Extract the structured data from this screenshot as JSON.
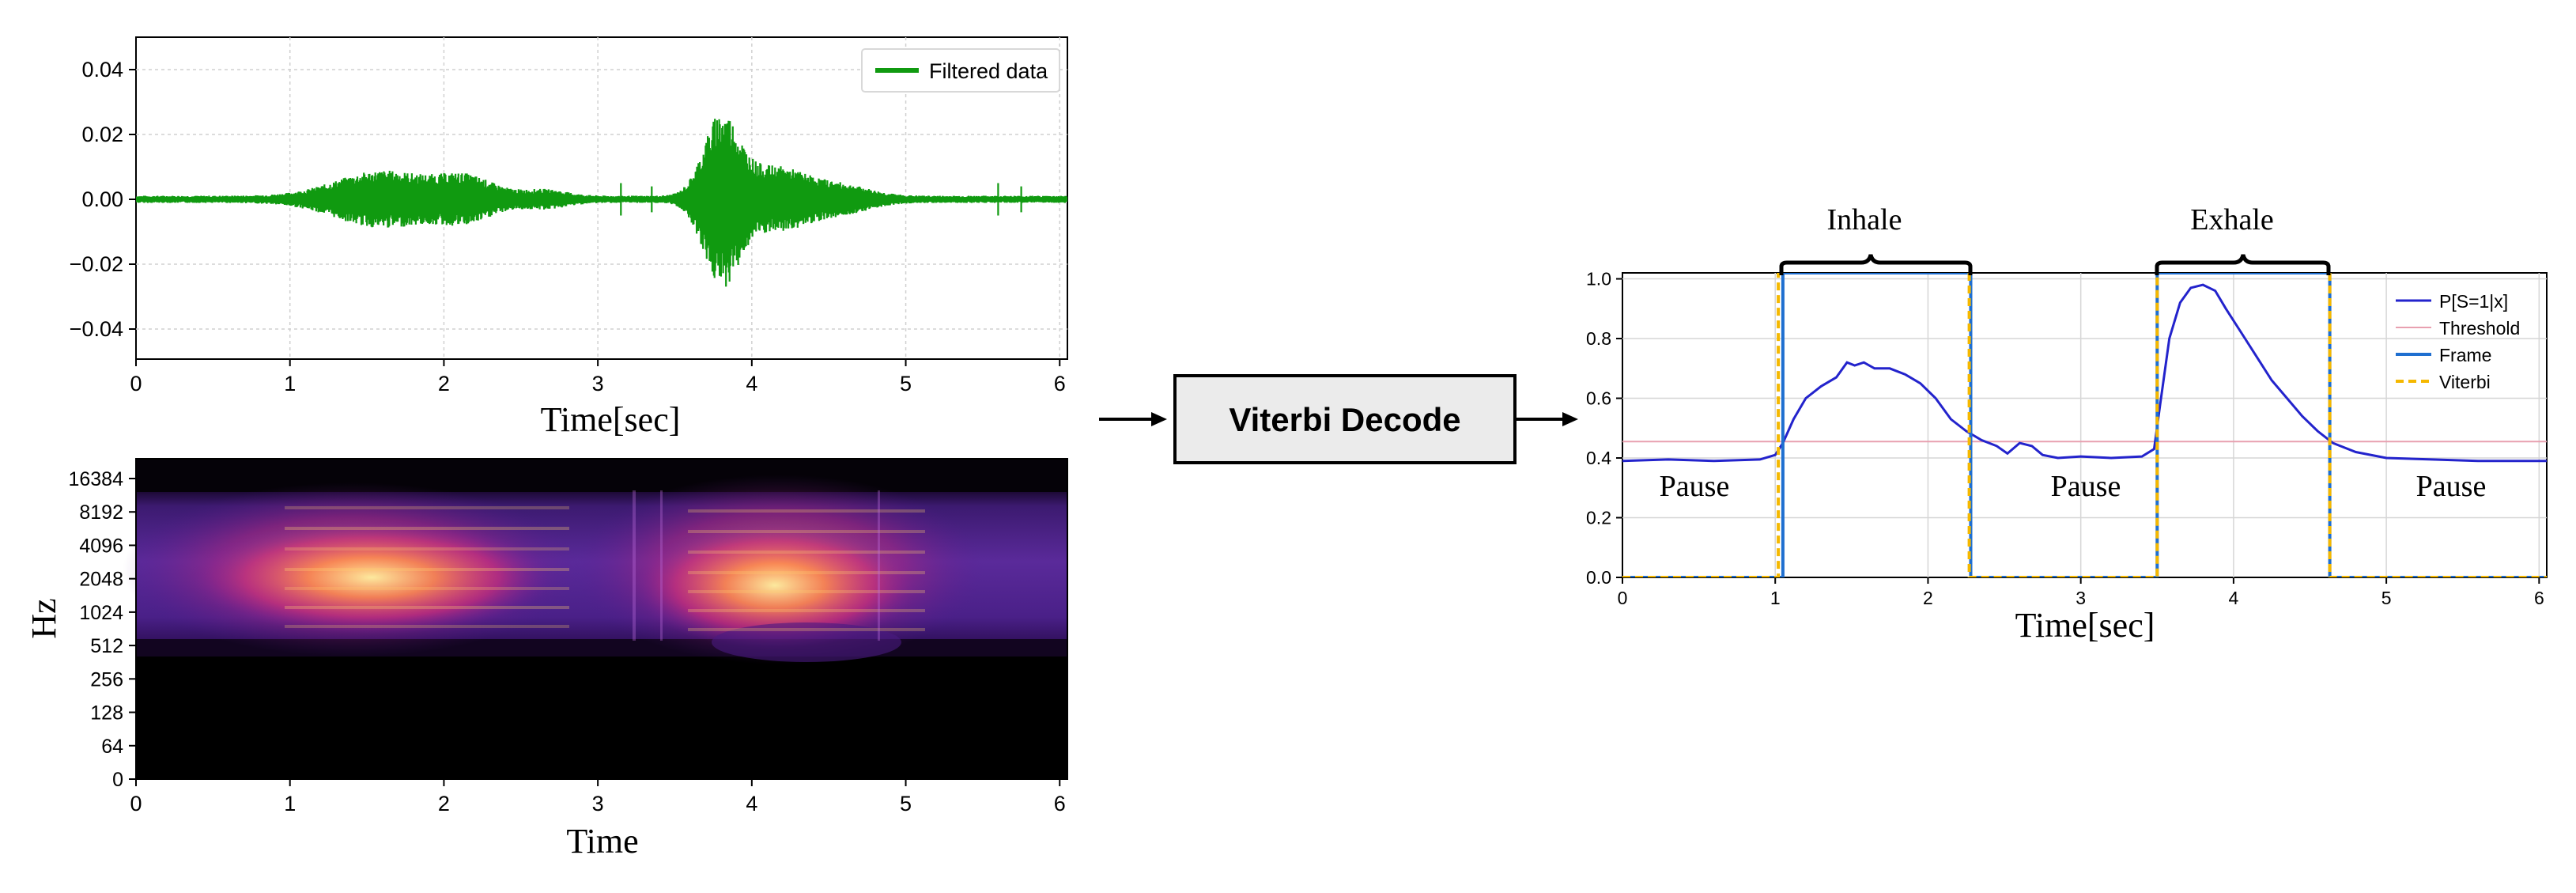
{
  "waveform": {
    "legend_label": "Filtered data",
    "xlabel": "Time[sec]",
    "x_ticks": [
      "0",
      "1",
      "2",
      "3",
      "4",
      "5",
      "6"
    ],
    "y_ticks": [
      "0.04",
      "0.02",
      "0.00",
      "−0.02",
      "−0.04"
    ],
    "color": "#109a10"
  },
  "spectrogram": {
    "ylabel": "Hz",
    "xlabel": "Time",
    "x_ticks": [
      "0",
      "1",
      "2",
      "3",
      "4",
      "5",
      "6"
    ],
    "y_ticks": [
      "16384",
      "8192",
      "4096",
      "2048",
      "1024",
      "512",
      "256",
      "128",
      "64",
      "0"
    ]
  },
  "decoder": {
    "label": "Viterbi Decode"
  },
  "vad_plot": {
    "xlabel": "Time[sec]",
    "x_ticks": [
      "0",
      "1",
      "2",
      "3",
      "4",
      "5",
      "6"
    ],
    "y_ticks": [
      "1.0",
      "0.8",
      "0.6",
      "0.4",
      "0.2",
      "0.0"
    ],
    "legend": [
      {
        "label": "P[S=1|x]",
        "color": "#2323cc"
      },
      {
        "label": "Threshold",
        "color": "#e8a0b0"
      },
      {
        "label": "Frame",
        "color": "#1f6fd0"
      },
      {
        "label": "Viterbi",
        "color": "#f5b800"
      }
    ],
    "annotations": {
      "inhale": "Inhale",
      "exhale": "Exhale",
      "pause_1": "Pause",
      "pause_2": "Pause",
      "pause_3": "Pause"
    }
  }
}
